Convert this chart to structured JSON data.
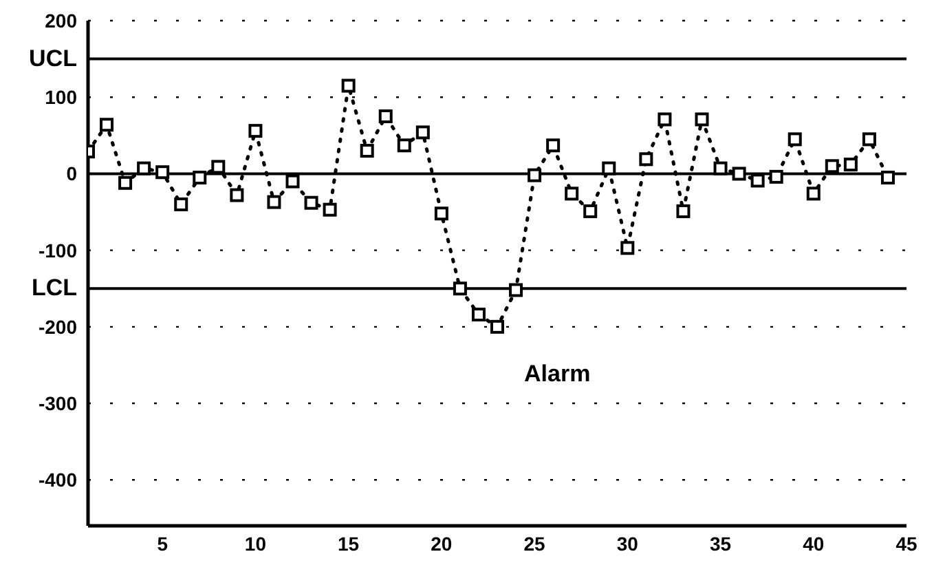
{
  "chart_data": {
    "type": "line",
    "x": [
      1,
      2,
      3,
      4,
      5,
      6,
      7,
      8,
      9,
      10,
      11,
      12,
      13,
      14,
      15,
      16,
      17,
      18,
      19,
      20,
      21,
      22,
      23,
      24,
      25,
      26,
      27,
      28,
      29,
      30,
      31,
      32,
      33,
      34,
      35,
      36,
      37,
      38,
      39,
      40,
      41,
      42,
      43,
      44
    ],
    "series": [
      {
        "color": "#000000",
        "values": [
          29,
          64,
          -12,
          7,
          2,
          -40,
          -5,
          9,
          -28,
          56,
          -37,
          -10,
          -38,
          -47,
          115,
          30,
          75,
          37,
          54,
          -52,
          -150,
          -184,
          -200,
          -152,
          -2,
          37,
          -26,
          -49,
          7,
          -97,
          19,
          71,
          -49,
          71,
          7,
          0,
          -9,
          -4,
          45,
          -26,
          10,
          12,
          45,
          -5
        ]
      }
    ],
    "xlim": [
      1,
      45
    ],
    "xticks": [
      5,
      10,
      15,
      20,
      25,
      30,
      35,
      40,
      45
    ],
    "ylim": [
      -460,
      200
    ],
    "yticks": [
      -400,
      -300,
      -200,
      -100,
      0,
      100,
      200
    ],
    "grid": "y",
    "marker": "square",
    "line_style": "dotted",
    "legend": false,
    "ref_lines": [
      {
        "axis": "y",
        "value": 150,
        "label": "UCL"
      },
      {
        "axis": "y",
        "value": 0
      },
      {
        "axis": "y",
        "value": -150,
        "label": "LCL"
      }
    ],
    "annotations": [
      "Alarm"
    ]
  }
}
